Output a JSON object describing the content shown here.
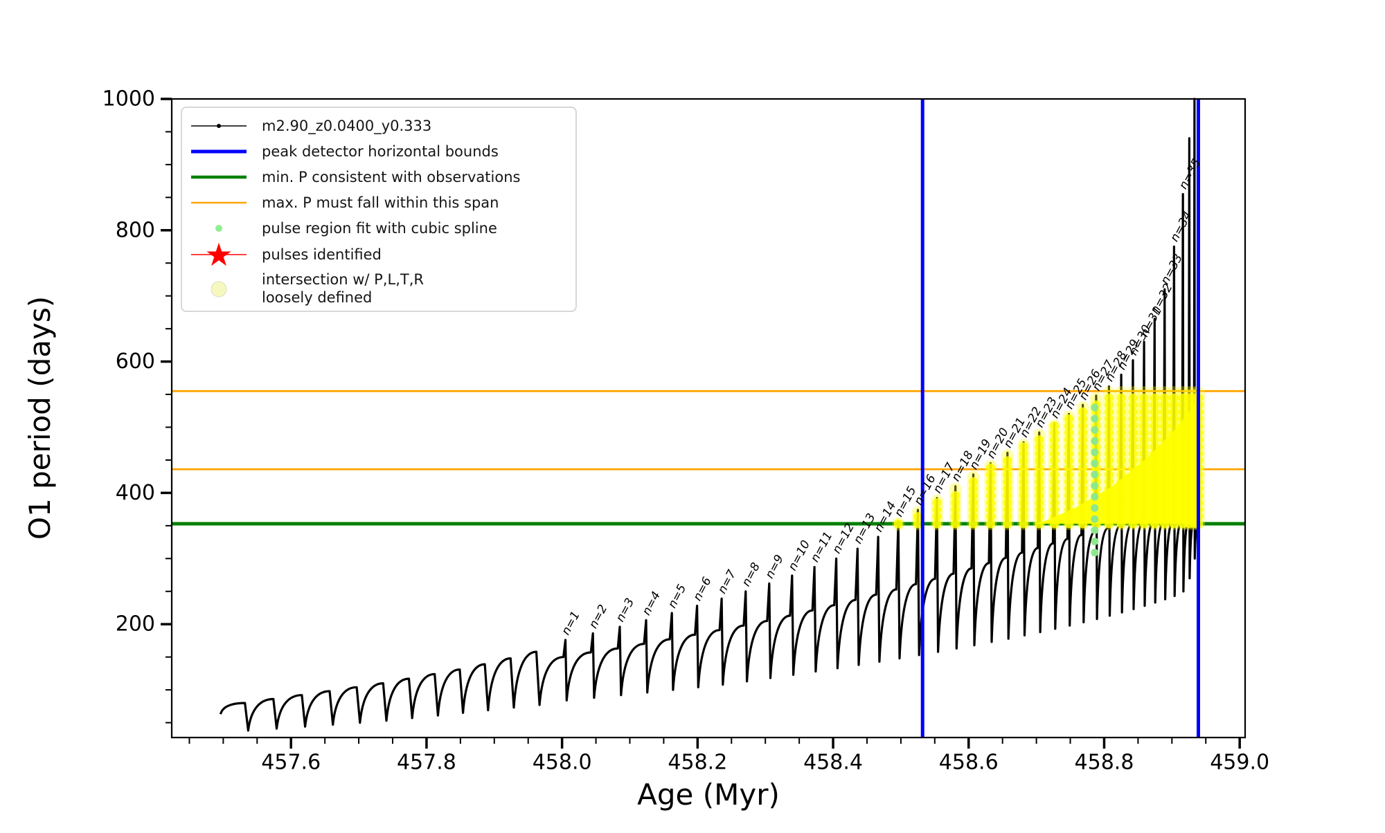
{
  "figure": {
    "xlabel": "Age (Myr)",
    "ylabel": "O1 period (days)"
  },
  "legend": {
    "items": [
      {
        "type": "line-dot",
        "color": "#000000",
        "width": 1.5,
        "label": "m2.90_z0.0400_y0.333"
      },
      {
        "type": "line",
        "color": "#0000ff",
        "width": 5,
        "label": "peak detector horizontal bounds"
      },
      {
        "type": "line",
        "color": "#008000",
        "width": 4.5,
        "label": "min. P consistent with observations"
      },
      {
        "type": "line",
        "color": "#ffa500",
        "width": 2.5,
        "label": "max. P must fall within this span"
      },
      {
        "type": "dot",
        "color": "#90ee90",
        "r": 5,
        "label": "pulse region fit with cubic spline"
      },
      {
        "type": "star",
        "color": "#ff0000",
        "label": "pulses identified"
      },
      {
        "type": "big-dot",
        "color": "#f7f7c0",
        "r": 11,
        "label": "intersection w/ P,L,T,R\nloosely defined"
      }
    ]
  },
  "chart_data": {
    "type": "line",
    "title": "",
    "xlabel": "Age (Myr)",
    "ylabel": "O1 period (days)",
    "series_name": "m2.90_z0.0400_y0.333",
    "axes": {
      "xlim": [
        457.424,
        459.008
      ],
      "ylim": [
        27.4,
        1000
      ],
      "xticks": [
        457.6,
        457.8,
        458.0,
        458.2,
        458.4,
        458.6,
        458.8,
        459.0
      ],
      "xtick_labels": [
        "457.6",
        "457.8",
        "458.0",
        "458.2",
        "458.4",
        "458.6",
        "458.8",
        "459.0"
      ],
      "yticks": [
        200,
        400,
        600,
        800,
        1000
      ],
      "ytick_labels": [
        "200",
        "400",
        "600",
        "800",
        "1000"
      ],
      "x_minor_step": 0.05,
      "y_minor_step": 50,
      "grid": false
    },
    "vlines": {
      "label": "peak detector horizontal bounds",
      "color": "#0000ff",
      "x": [
        458.532,
        458.939
      ]
    },
    "hlines": [
      {
        "label": "min. P consistent with observations",
        "color": "#008000",
        "y": 353
      },
      {
        "label": "max. P must fall within this span",
        "color": "#ffa500",
        "y": 436
      },
      {
        "label": "max. P must fall within this span",
        "color": "#ffa500",
        "y": 555
      }
    ],
    "pulse_label_prefix": "n=",
    "series_start": {
      "age": 457.496,
      "period": 63
    },
    "cycles": [
      {
        "n": null,
        "e": 457.538,
        "p": 80,
        "t": 80,
        "m": 38
      },
      {
        "n": null,
        "e": 457.58,
        "p": 86,
        "t": 86,
        "m": 41
      },
      {
        "n": null,
        "e": 457.622,
        "p": 92,
        "t": 92,
        "m": 44
      },
      {
        "n": null,
        "e": 457.663,
        "p": 98,
        "t": 98,
        "m": 47
      },
      {
        "n": null,
        "e": 457.703,
        "p": 104,
        "t": 104,
        "m": 50
      },
      {
        "n": null,
        "e": 457.742,
        "p": 110,
        "t": 110,
        "m": 53
      },
      {
        "n": null,
        "e": 457.78,
        "p": 117,
        "t": 117,
        "m": 57
      },
      {
        "n": null,
        "e": 457.818,
        "p": 124,
        "t": 124,
        "m": 61
      },
      {
        "n": null,
        "e": 457.855,
        "p": 131,
        "t": 131,
        "m": 65
      },
      {
        "n": null,
        "e": 457.892,
        "p": 139,
        "t": 139,
        "m": 69
      },
      {
        "n": null,
        "e": 457.93,
        "p": 148,
        "t": 148,
        "m": 73
      },
      {
        "n": null,
        "e": 457.968,
        "p": 158,
        "t": 158,
        "m": 77
      },
      {
        "n": 1,
        "e": 458.008,
        "p": 176,
        "t": 150,
        "m": 84
      },
      {
        "n": 2,
        "e": 458.0485,
        "p": 186,
        "t": 157,
        "m": 88
      },
      {
        "n": 3,
        "e": 458.0882,
        "p": 196,
        "t": 163,
        "m": 92
      },
      {
        "n": 4,
        "e": 458.127,
        "p": 206,
        "t": 170,
        "m": 96
      },
      {
        "n": 5,
        "e": 458.165,
        "p": 217,
        "t": 177,
        "m": 100
      },
      {
        "n": 6,
        "e": 458.2022,
        "p": 228,
        "t": 184,
        "m": 104
      },
      {
        "n": 7,
        "e": 458.2385,
        "p": 239,
        "t": 191,
        "m": 108
      },
      {
        "n": 8,
        "e": 458.274,
        "p": 250,
        "t": 198,
        "m": 113
      },
      {
        "n": 9,
        "e": 458.3087,
        "p": 262,
        "t": 205,
        "m": 118
      },
      {
        "n": 10,
        "e": 458.3425,
        "p": 274,
        "t": 213,
        "m": 123
      },
      {
        "n": 11,
        "e": 458.3755,
        "p": 287,
        "t": 221,
        "m": 128
      },
      {
        "n": 12,
        "e": 458.4077,
        "p": 300,
        "t": 229,
        "m": 133
      },
      {
        "n": 13,
        "e": 458.439,
        "p": 315,
        "t": 237,
        "m": 138
      },
      {
        "n": 14,
        "e": 458.4695,
        "p": 333,
        "t": 245,
        "m": 143
      },
      {
        "n": 15,
        "e": 458.4992,
        "p": 356,
        "t": 253,
        "m": 148
      },
      {
        "n": 16,
        "e": 458.528,
        "p": 374,
        "t": 261,
        "m": 153
      },
      {
        "n": 17,
        "e": 458.556,
        "p": 392,
        "t": 269,
        "m": 158
      },
      {
        "n": 18,
        "e": 458.5832,
        "p": 410,
        "t": 277,
        "m": 163
      },
      {
        "n": 19,
        "e": 458.6095,
        "p": 428,
        "t": 285,
        "m": 168
      },
      {
        "n": 20,
        "e": 458.635,
        "p": 445,
        "t": 293,
        "m": 173
      },
      {
        "n": 21,
        "e": 458.6597,
        "p": 461,
        "t": 301,
        "m": 178
      },
      {
        "n": 22,
        "e": 458.6835,
        "p": 477,
        "t": 309,
        "m": 183
      },
      {
        "n": 23,
        "e": 458.7065,
        "p": 492,
        "t": 316,
        "m": 188
      },
      {
        "n": 24,
        "e": 458.7287,
        "p": 506,
        "t": 323,
        "m": 193
      },
      {
        "n": 25,
        "e": 458.75,
        "p": 520,
        "t": 330,
        "m": 198
      },
      {
        "n": 26,
        "e": 458.7705,
        "p": 534,
        "t": 336,
        "m": 203
      },
      {
        "n": 27,
        "e": 458.7902,
        "p": 548,
        "t": 341,
        "m": 208
      },
      {
        "n": 28,
        "e": 458.809,
        "p": 562,
        "t": 346,
        "m": 213
      },
      {
        "n": 29,
        "e": 458.827,
        "p": 580,
        "t": 350,
        "m": 218
      },
      {
        "n": 30,
        "e": 458.8442,
        "p": 602,
        "t": 353,
        "m": 223
      },
      {
        "n": 31,
        "e": 458.8605,
        "p": 630,
        "t": 355,
        "m": 228
      },
      {
        "n": 32,
        "e": 458.876,
        "p": 665,
        "t": 356,
        "m": 233
      },
      {
        "n": 33,
        "e": 458.8907,
        "p": 710,
        "t": 357,
        "m": 238
      },
      {
        "n": 34,
        "e": 458.9045,
        "p": 775,
        "t": 357,
        "m": 243
      },
      {
        "n": 35,
        "e": 458.9175,
        "p": 855,
        "t": 358,
        "m": 250
      },
      {
        "n": null,
        "e": 458.9265,
        "p": 940,
        "t": 358,
        "m": 270
      },
      {
        "n": null,
        "e": 458.934,
        "p": 1000,
        "t": 358,
        "m": 300
      },
      {
        "n": null,
        "e": 458.94,
        "p": 780,
        "t": 358,
        "m": 340
      }
    ],
    "spline_fit_points": {
      "age": 458.786,
      "p_min": 309,
      "p_max": 545,
      "step": 17,
      "color": "#8de88d"
    },
    "intersection_region": {
      "color": "#ffff00",
      "period_band": [
        353,
        553
      ],
      "age_range": [
        458.49,
        458.94
      ],
      "wedge": [
        [
          458.697,
          353
        ],
        [
          458.94,
          353
        ],
        [
          458.94,
          543
        ],
        [
          458.906,
          498
        ],
        [
          458.862,
          452
        ],
        [
          458.812,
          410
        ],
        [
          458.757,
          377
        ],
        [
          458.712,
          357
        ]
      ]
    }
  }
}
